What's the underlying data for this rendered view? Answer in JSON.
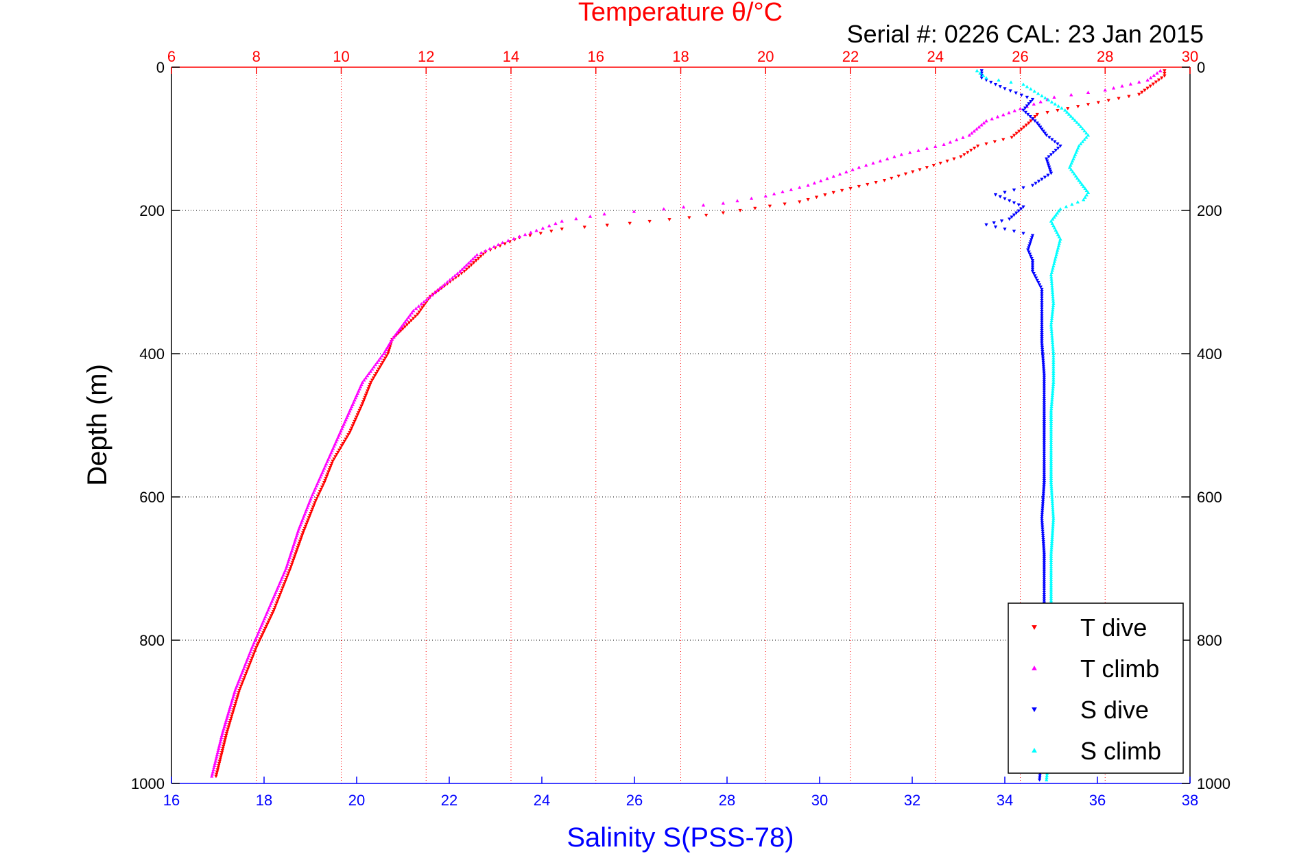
{
  "chart_data": {
    "type": "scatter",
    "title": "Temperature θ/°C",
    "subtitle": "Serial #: 0226  CAL: 23 Jan 2015",
    "ylabel": "Depth (m)",
    "xlabel": "Salinity S(PSS-78)",
    "ylim": [
      1000,
      0
    ],
    "y_ticks": [
      0,
      200,
      400,
      600,
      800,
      1000
    ],
    "temperature_axis": {
      "position": "top",
      "range": [
        6,
        30
      ],
      "ticks": [
        6,
        8,
        10,
        12,
        14,
        16,
        18,
        20,
        22,
        24,
        26,
        28,
        30
      ],
      "color": "#ff0000",
      "grid": true
    },
    "salinity_axis": {
      "position": "bottom",
      "range": [
        16,
        38
      ],
      "ticks": [
        16,
        18,
        20,
        22,
        24,
        26,
        28,
        30,
        32,
        34,
        36,
        38
      ],
      "color": "#0000ff",
      "grid": false
    },
    "depth_grid": true,
    "legend_position": "bottom-right",
    "series": [
      {
        "name": "T dive",
        "axis": "temperature",
        "color": "#ff0000",
        "marker": "triangle-down",
        "points": [
          [
            29.4,
            5
          ],
          [
            29.4,
            12
          ],
          [
            28.8,
            38
          ],
          [
            27.6,
            52
          ],
          [
            26.4,
            66
          ],
          [
            26.2,
            78
          ],
          [
            25.8,
            98
          ],
          [
            25.0,
            110
          ],
          [
            24.6,
            125
          ],
          [
            23.8,
            140
          ],
          [
            22.8,
            158
          ],
          [
            21.6,
            175
          ],
          [
            20.8,
            188
          ],
          [
            19.4,
            200
          ],
          [
            18.2,
            210
          ],
          [
            16.8,
            218
          ],
          [
            15.2,
            226
          ],
          [
            14.2,
            238
          ],
          [
            13.4,
            258
          ],
          [
            12.9,
            285
          ],
          [
            12.1,
            320
          ],
          [
            11.8,
            345
          ],
          [
            11.2,
            380
          ],
          [
            11.1,
            400
          ],
          [
            10.7,
            440
          ],
          [
            10.5,
            470
          ],
          [
            10.2,
            510
          ],
          [
            9.8,
            550
          ],
          [
            9.6,
            580
          ],
          [
            9.4,
            605
          ],
          [
            9.1,
            650
          ],
          [
            8.8,
            700
          ],
          [
            8.4,
            760
          ],
          [
            8.0,
            810
          ],
          [
            7.6,
            870
          ],
          [
            7.3,
            930
          ],
          [
            7.05,
            990
          ]
        ]
      },
      {
        "name": "T climb",
        "axis": "temperature",
        "color": "#ff00ff",
        "marker": "triangle-up",
        "points": [
          [
            29.3,
            5
          ],
          [
            29.0,
            18
          ],
          [
            28.0,
            32
          ],
          [
            26.8,
            42
          ],
          [
            26.0,
            58
          ],
          [
            25.2,
            75
          ],
          [
            24.8,
            95
          ],
          [
            24.2,
            108
          ],
          [
            23.2,
            122
          ],
          [
            22.2,
            140
          ],
          [
            21.0,
            165
          ],
          [
            20.0,
            180
          ],
          [
            19.0,
            190
          ],
          [
            17.6,
            198
          ],
          [
            16.2,
            205
          ],
          [
            15.2,
            215
          ],
          [
            14.6,
            228
          ],
          [
            13.8,
            245
          ],
          [
            13.2,
            262
          ],
          [
            12.8,
            285
          ],
          [
            12.2,
            315
          ],
          [
            11.7,
            340
          ],
          [
            11.2,
            380
          ],
          [
            11.0,
            400
          ],
          [
            10.5,
            440
          ],
          [
            10.2,
            480
          ],
          [
            9.9,
            520
          ],
          [
            9.6,
            560
          ],
          [
            9.3,
            600
          ],
          [
            9.0,
            645
          ],
          [
            8.7,
            700
          ],
          [
            8.3,
            755
          ],
          [
            7.9,
            810
          ],
          [
            7.5,
            870
          ],
          [
            7.2,
            930
          ],
          [
            6.95,
            990
          ]
        ]
      },
      {
        "name": "S dive",
        "axis": "salinity",
        "color": "#0000ff",
        "marker": "triangle-down",
        "points": [
          [
            33.5,
            5
          ],
          [
            33.5,
            15
          ],
          [
            34.0,
            30
          ],
          [
            34.6,
            45
          ],
          [
            34.4,
            60
          ],
          [
            34.7,
            78
          ],
          [
            34.9,
            95
          ],
          [
            35.2,
            110
          ],
          [
            34.9,
            128
          ],
          [
            35.0,
            148
          ],
          [
            34.6,
            165
          ],
          [
            33.8,
            178
          ],
          [
            34.4,
            195
          ],
          [
            34.1,
            212
          ],
          [
            33.6,
            220
          ],
          [
            34.6,
            235
          ],
          [
            34.5,
            255
          ],
          [
            34.6,
            270
          ],
          [
            34.6,
            285
          ],
          [
            34.8,
            310
          ],
          [
            34.8,
            350
          ],
          [
            34.8,
            385
          ],
          [
            34.85,
            430
          ],
          [
            34.85,
            480
          ],
          [
            34.85,
            530
          ],
          [
            34.85,
            580
          ],
          [
            34.8,
            630
          ],
          [
            34.85,
            680
          ],
          [
            34.85,
            730
          ],
          [
            34.85,
            790
          ],
          [
            34.85,
            850
          ],
          [
            34.85,
            910
          ],
          [
            34.8,
            960
          ],
          [
            34.75,
            995
          ]
        ]
      },
      {
        "name": "S climb",
        "axis": "salinity",
        "color": "#00ffff",
        "marker": "triangle-up",
        "points": [
          [
            33.4,
            5
          ],
          [
            33.6,
            15
          ],
          [
            34.4,
            24
          ],
          [
            34.8,
            40
          ],
          [
            35.3,
            60
          ],
          [
            35.6,
            80
          ],
          [
            35.8,
            95
          ],
          [
            35.6,
            110
          ],
          [
            35.5,
            125
          ],
          [
            35.4,
            140
          ],
          [
            35.6,
            158
          ],
          [
            35.8,
            175
          ],
          [
            35.7,
            185
          ],
          [
            35.2,
            198
          ],
          [
            35.0,
            215
          ],
          [
            35.2,
            240
          ],
          [
            35.1,
            265
          ],
          [
            35.0,
            290
          ],
          [
            35.05,
            330
          ],
          [
            35.0,
            360
          ],
          [
            35.05,
            400
          ],
          [
            35.05,
            440
          ],
          [
            35.0,
            480
          ],
          [
            35.0,
            530
          ],
          [
            35.0,
            580
          ],
          [
            35.05,
            630
          ],
          [
            35.0,
            680
          ],
          [
            35.0,
            730
          ],
          [
            35.0,
            790
          ],
          [
            35.0,
            850
          ],
          [
            35.0,
            910
          ],
          [
            34.95,
            960
          ],
          [
            34.9,
            995
          ]
        ]
      }
    ]
  }
}
